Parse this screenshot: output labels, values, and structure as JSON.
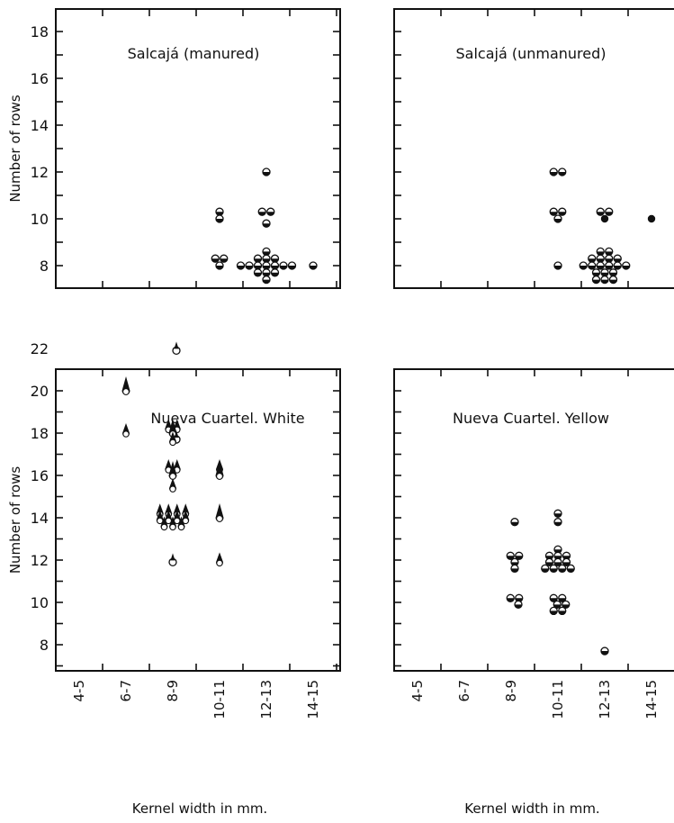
{
  "chart_data": [
    {
      "type": "scatter",
      "title": "Salcajá (manured)",
      "ylabel": "Number of rows",
      "xlabel": "",
      "categories": [
        "4-5",
        "6-7",
        "8-9",
        "10-11",
        "12-13",
        "14-15"
      ],
      "yticks": [
        8,
        10,
        12,
        14,
        16,
        18
      ],
      "ylim": [
        7,
        19
      ],
      "points": [
        {
          "x": "10-11",
          "y": 10.3,
          "m": "half"
        },
        {
          "x": "10-11",
          "y": 10.0,
          "m": "half"
        },
        {
          "x": "10-11",
          "y": 8.3,
          "m": "half"
        },
        {
          "x": "10-11",
          "y": 8.3,
          "m": "half"
        },
        {
          "x": "10-11",
          "y": 8.0,
          "m": "half"
        },
        {
          "x": "12-13",
          "y": 12.0,
          "m": "half"
        },
        {
          "x": "12-13",
          "y": 10.3,
          "m": "half"
        },
        {
          "x": "12-13",
          "y": 10.3,
          "m": "half"
        },
        {
          "x": "12-13",
          "y": 9.8,
          "m": "half"
        },
        {
          "x": "12-13",
          "y": 8.6,
          "m": "half"
        },
        {
          "x": "12-13",
          "y": 8.3,
          "m": "half"
        },
        {
          "x": "12-13",
          "y": 8.3,
          "m": "half"
        },
        {
          "x": "12-13",
          "y": 8.3,
          "m": "half"
        },
        {
          "x": "12-13",
          "y": 8.0,
          "m": "half"
        },
        {
          "x": "12-13",
          "y": 8.0,
          "m": "half"
        },
        {
          "x": "12-13",
          "y": 8.0,
          "m": "half"
        },
        {
          "x": "12-13",
          "y": 8.0,
          "m": "half"
        },
        {
          "x": "12-13",
          "y": 8.0,
          "m": "half"
        },
        {
          "x": "12-13",
          "y": 8.0,
          "m": "half"
        },
        {
          "x": "12-13",
          "y": 8.0,
          "m": "half"
        },
        {
          "x": "12-13",
          "y": 7.7,
          "m": "half"
        },
        {
          "x": "12-13",
          "y": 7.7,
          "m": "half"
        },
        {
          "x": "12-13",
          "y": 7.7,
          "m": "half"
        },
        {
          "x": "12-13",
          "y": 7.4,
          "m": "half"
        },
        {
          "x": "14-15",
          "y": 8.0,
          "m": "half"
        }
      ]
    },
    {
      "type": "scatter",
      "title": "Salcajá (unmanured)",
      "ylabel": "",
      "xlabel": "",
      "categories": [
        "4-5",
        "6-7",
        "8-9",
        "10-11",
        "12-13",
        "14-15"
      ],
      "ylim": [
        7,
        19
      ],
      "points": [
        {
          "x": "10-11",
          "y": 12.0,
          "m": "half"
        },
        {
          "x": "10-11",
          "y": 12.0,
          "m": "half"
        },
        {
          "x": "10-11",
          "y": 10.3,
          "m": "half"
        },
        {
          "x": "10-11",
          "y": 10.3,
          "m": "half"
        },
        {
          "x": "10-11",
          "y": 10.0,
          "m": "half"
        },
        {
          "x": "10-11",
          "y": 8.0,
          "m": "half"
        },
        {
          "x": "12-13",
          "y": 10.3,
          "m": "half"
        },
        {
          "x": "12-13",
          "y": 10.3,
          "m": "half"
        },
        {
          "x": "12-13",
          "y": 10.0,
          "m": "solid"
        },
        {
          "x": "12-13",
          "y": 8.6,
          "m": "half"
        },
        {
          "x": "12-13",
          "y": 8.6,
          "m": "half"
        },
        {
          "x": "12-13",
          "y": 8.3,
          "m": "half"
        },
        {
          "x": "12-13",
          "y": 8.3,
          "m": "half"
        },
        {
          "x": "12-13",
          "y": 8.3,
          "m": "half"
        },
        {
          "x": "12-13",
          "y": 8.3,
          "m": "half"
        },
        {
          "x": "12-13",
          "y": 8.0,
          "m": "half"
        },
        {
          "x": "12-13",
          "y": 8.0,
          "m": "half"
        },
        {
          "x": "12-13",
          "y": 8.0,
          "m": "half"
        },
        {
          "x": "12-13",
          "y": 8.0,
          "m": "half"
        },
        {
          "x": "12-13",
          "y": 8.0,
          "m": "half"
        },
        {
          "x": "12-13",
          "y": 8.0,
          "m": "half"
        },
        {
          "x": "12-13",
          "y": 7.7,
          "m": "half"
        },
        {
          "x": "12-13",
          "y": 7.7,
          "m": "half"
        },
        {
          "x": "12-13",
          "y": 7.7,
          "m": "half"
        },
        {
          "x": "12-13",
          "y": 7.4,
          "m": "half"
        },
        {
          "x": "12-13",
          "y": 7.4,
          "m": "half"
        },
        {
          "x": "12-13",
          "y": 7.4,
          "m": "half"
        },
        {
          "x": "14-15",
          "y": 10.0,
          "m": "solid"
        }
      ]
    },
    {
      "type": "scatter",
      "title": "Nueva Cuartel. White",
      "ylabel": "Number of rows",
      "xlabel": "Kernel width in mm.",
      "categories": [
        "4-5",
        "6-7",
        "8-9",
        "10-11",
        "12-13",
        "14-15"
      ],
      "yticks": [
        8,
        10,
        12,
        14,
        16,
        18,
        20,
        22
      ],
      "ylim": [
        7,
        23
      ],
      "points": [
        {
          "x": "6-7",
          "y": 20.0,
          "m": "tall"
        },
        {
          "x": "6-7",
          "y": 18.0,
          "m": "drop"
        },
        {
          "x": "8-9",
          "y": 21.9,
          "m": "ring"
        },
        {
          "x": "8-9",
          "y": 18.2,
          "m": "drop"
        },
        {
          "x": "8-9",
          "y": 18.2,
          "m": "drop"
        },
        {
          "x": "8-9",
          "y": 17.7,
          "m": "ring"
        },
        {
          "x": "8-9",
          "y": 18.0,
          "m": "tall"
        },
        {
          "x": "8-9",
          "y": 17.6,
          "m": "drop"
        },
        {
          "x": "8-9",
          "y": 16.3,
          "m": "drop"
        },
        {
          "x": "8-9",
          "y": 16.3,
          "m": "drop"
        },
        {
          "x": "8-9",
          "y": 16.0,
          "m": "tall"
        },
        {
          "x": "8-9",
          "y": 15.4,
          "m": "drop"
        },
        {
          "x": "8-9",
          "y": 14.2,
          "m": "drop"
        },
        {
          "x": "8-9",
          "y": 14.2,
          "m": "drop"
        },
        {
          "x": "8-9",
          "y": 14.2,
          "m": "drop"
        },
        {
          "x": "8-9",
          "y": 14.2,
          "m": "drop"
        },
        {
          "x": "8-9",
          "y": 13.9,
          "m": "drop"
        },
        {
          "x": "8-9",
          "y": 13.9,
          "m": "drop"
        },
        {
          "x": "8-9",
          "y": 13.9,
          "m": "drop"
        },
        {
          "x": "8-9",
          "y": 13.9,
          "m": "drop"
        },
        {
          "x": "8-9",
          "y": 13.6,
          "m": "drop"
        },
        {
          "x": "8-9",
          "y": 13.6,
          "m": "drop"
        },
        {
          "x": "8-9",
          "y": 13.6,
          "m": "drop"
        },
        {
          "x": "8-9",
          "y": 11.9,
          "m": "ring"
        },
        {
          "x": "10-11",
          "y": 16.3,
          "m": "drop"
        },
        {
          "x": "10-11",
          "y": 16.0,
          "m": "tall"
        },
        {
          "x": "10-11",
          "y": 14.0,
          "m": "tall"
        },
        {
          "x": "10-11",
          "y": 11.9,
          "m": "drop"
        }
      ]
    },
    {
      "type": "scatter",
      "title": "Nueva Cuartel. Yellow",
      "ylabel": "",
      "xlabel": "Kernel width in mm.",
      "categories": [
        "4-5",
        "6-7",
        "8-9",
        "10-11",
        "12-13",
        "14-15"
      ],
      "ylim": [
        7,
        23
      ],
      "points": [
        {
          "x": "8-9",
          "y": 13.8,
          "m": "half"
        },
        {
          "x": "8-9",
          "y": 12.2,
          "m": "half"
        },
        {
          "x": "8-9",
          "y": 12.2,
          "m": "half"
        },
        {
          "x": "8-9",
          "y": 11.9,
          "m": "half"
        },
        {
          "x": "8-9",
          "y": 11.6,
          "m": "half"
        },
        {
          "x": "8-9",
          "y": 10.2,
          "m": "half"
        },
        {
          "x": "8-9",
          "y": 10.2,
          "m": "half"
        },
        {
          "x": "8-9",
          "y": 9.9,
          "m": "half"
        },
        {
          "x": "10-11",
          "y": 14.2,
          "m": "half"
        },
        {
          "x": "10-11",
          "y": 13.8,
          "m": "half"
        },
        {
          "x": "10-11",
          "y": 12.5,
          "m": "half"
        },
        {
          "x": "10-11",
          "y": 12.2,
          "m": "half"
        },
        {
          "x": "10-11",
          "y": 12.2,
          "m": "half"
        },
        {
          "x": "10-11",
          "y": 12.2,
          "m": "half"
        },
        {
          "x": "10-11",
          "y": 11.9,
          "m": "half"
        },
        {
          "x": "10-11",
          "y": 11.9,
          "m": "half"
        },
        {
          "x": "10-11",
          "y": 11.9,
          "m": "half"
        },
        {
          "x": "10-11",
          "y": 11.6,
          "m": "half"
        },
        {
          "x": "10-11",
          "y": 11.6,
          "m": "half"
        },
        {
          "x": "10-11",
          "y": 11.6,
          "m": "half"
        },
        {
          "x": "10-11",
          "y": 11.6,
          "m": "half"
        },
        {
          "x": "10-11",
          "y": 10.2,
          "m": "half"
        },
        {
          "x": "10-11",
          "y": 10.2,
          "m": "half"
        },
        {
          "x": "10-11",
          "y": 9.9,
          "m": "half"
        },
        {
          "x": "10-11",
          "y": 9.9,
          "m": "half"
        },
        {
          "x": "10-11",
          "y": 9.6,
          "m": "half"
        },
        {
          "x": "10-11",
          "y": 9.6,
          "m": "half"
        },
        {
          "x": "12-13",
          "y": 7.7,
          "m": "half"
        }
      ]
    }
  ]
}
